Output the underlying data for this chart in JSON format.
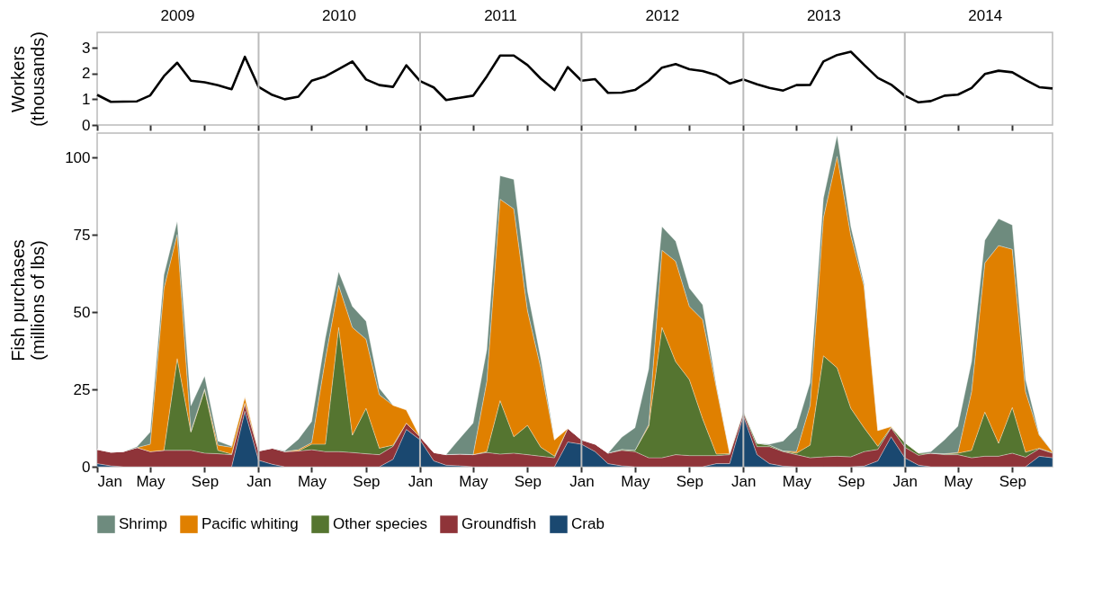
{
  "chart_data": [
    {
      "type": "line",
      "ylabel": "Workers\n(thousands)",
      "x": [
        "2009-01",
        "2009-02",
        "2009-03",
        "2009-04",
        "2009-05",
        "2009-06",
        "2009-07",
        "2009-08",
        "2009-09",
        "2009-10",
        "2009-11",
        "2009-12",
        "2010-01",
        "2010-02",
        "2010-03",
        "2010-04",
        "2010-05",
        "2010-06",
        "2010-07",
        "2010-08",
        "2010-09",
        "2010-10",
        "2010-11",
        "2010-12",
        "2011-01",
        "2011-02",
        "2011-03",
        "2011-04",
        "2011-05",
        "2011-06",
        "2011-07",
        "2011-08",
        "2011-09",
        "2011-10",
        "2011-11",
        "2011-12",
        "2012-01",
        "2012-02",
        "2012-03",
        "2012-04",
        "2012-05",
        "2012-06",
        "2012-07",
        "2012-08",
        "2012-09",
        "2012-10",
        "2012-11",
        "2012-12",
        "2013-01",
        "2013-02",
        "2013-03",
        "2013-04",
        "2013-05",
        "2013-06",
        "2013-07",
        "2013-08",
        "2013-09",
        "2013-10",
        "2013-11",
        "2013-12",
        "2014-01",
        "2014-02",
        "2014-03",
        "2014-04",
        "2014-05",
        "2014-06",
        "2014-07",
        "2014-08",
        "2014-09",
        "2014-10",
        "2014-11",
        "2014-12"
      ],
      "series": [
        {
          "color": "#000000",
          "values": [
            1.17,
            0.9,
            0.91,
            0.92,
            1.15,
            1.9,
            2.42,
            1.72,
            1.66,
            1.55,
            1.39,
            2.65,
            1.48,
            1.17,
            1.0,
            1.1,
            1.72,
            1.89,
            2.17,
            2.47,
            1.77,
            1.55,
            1.48,
            2.32,
            1.71,
            1.46,
            0.97,
            1.06,
            1.14,
            1.89,
            2.7,
            2.7,
            2.33,
            1.8,
            1.36,
            2.25,
            1.72,
            1.78,
            1.25,
            1.26,
            1.36,
            1.72,
            2.23,
            2.37,
            2.17,
            2.1,
            1.94,
            1.61,
            1.77,
            1.58,
            1.44,
            1.34,
            1.55,
            1.56,
            2.47,
            2.72,
            2.85,
            2.34,
            1.83,
            1.57,
            1.14,
            0.88,
            0.93,
            1.14,
            1.18,
            1.44,
            1.98,
            2.11,
            2.05,
            1.75,
            1.47,
            1.42
          ]
        }
      ],
      "xlim": [
        "2009-01",
        "2014-12"
      ],
      "ylim": [
        0,
        3.6
      ],
      "yticks": [
        0,
        1,
        2,
        3
      ],
      "xticks": [
        {
          "value": "2009-01",
          "label": null
        },
        {
          "value": "2009-05",
          "label": null
        },
        {
          "value": "2009-09",
          "label": null
        },
        {
          "value": "2010-01",
          "label": null
        },
        {
          "value": "2010-05",
          "label": null
        },
        {
          "value": "2010-09",
          "label": null
        },
        {
          "value": "2011-01",
          "label": null
        },
        {
          "value": "2011-05",
          "label": null
        },
        {
          "value": "2011-09",
          "label": null
        },
        {
          "value": "2012-01",
          "label": null
        },
        {
          "value": "2012-05",
          "label": null
        },
        {
          "value": "2012-09",
          "label": null
        },
        {
          "value": "2013-01",
          "label": null
        },
        {
          "value": "2013-05",
          "label": null
        },
        {
          "value": "2013-09",
          "label": null
        },
        {
          "value": "2014-01",
          "label": null
        },
        {
          "value": "2014-05",
          "label": null
        },
        {
          "value": "2014-09",
          "label": null
        }
      ],
      "x2lim": [
        "2009-01",
        "2014-12"
      ],
      "x2ticks": [
        {
          "value": "2009-07",
          "label": "2009"
        },
        {
          "value": "2010-07",
          "label": "2010"
        },
        {
          "value": "2011-07",
          "label": "2011"
        },
        {
          "value": "2012-07",
          "label": "2012"
        },
        {
          "value": "2013-07",
          "label": "2013"
        },
        {
          "value": "2014-07",
          "label": "2014"
        }
      ],
      "tick_labels": "y",
      "marker": "none",
      "line_style": "solid",
      "ref_lines": [
        {
          "axis": "x",
          "value": "2010-01",
          "label": null,
          "color": "#bbbbbb"
        },
        {
          "axis": "x",
          "value": "2011-01",
          "label": null,
          "color": "#bbbbbb"
        },
        {
          "axis": "x",
          "value": "2012-01",
          "label": null,
          "color": "#bbbbbb"
        },
        {
          "axis": "x",
          "value": "2013-01",
          "label": null,
          "color": "#bbbbbb"
        },
        {
          "axis": "x",
          "value": "2014-01",
          "label": null,
          "color": "#bbbbbb"
        }
      ]
    },
    {
      "type": "area",
      "stacked": true,
      "ylabel": "Fish purchases\n(millions of lbs)",
      "x": [
        "2009-01",
        "2009-02",
        "2009-03",
        "2009-04",
        "2009-05",
        "2009-06",
        "2009-07",
        "2009-08",
        "2009-09",
        "2009-10",
        "2009-11",
        "2009-12",
        "2010-01",
        "2010-02",
        "2010-03",
        "2010-04",
        "2010-05",
        "2010-06",
        "2010-07",
        "2010-08",
        "2010-09",
        "2010-10",
        "2010-11",
        "2010-12",
        "2011-01",
        "2011-02",
        "2011-03",
        "2011-04",
        "2011-05",
        "2011-06",
        "2011-07",
        "2011-08",
        "2011-09",
        "2011-10",
        "2011-11",
        "2011-12",
        "2012-01",
        "2012-02",
        "2012-03",
        "2012-04",
        "2012-05",
        "2012-06",
        "2012-07",
        "2012-08",
        "2012-09",
        "2012-10",
        "2012-11",
        "2012-12",
        "2013-01",
        "2013-02",
        "2013-03",
        "2013-04",
        "2013-05",
        "2013-06",
        "2013-07",
        "2013-08",
        "2013-09",
        "2013-10",
        "2013-11",
        "2013-12",
        "2014-01",
        "2014-02",
        "2014-03",
        "2014-04",
        "2014-05",
        "2014-06",
        "2014-07",
        "2014-08",
        "2014-09",
        "2014-10",
        "2014-11",
        "2014-12"
      ],
      "series": [
        {
          "name": "Crab",
          "color": "#1a4870",
          "values": [
            1.0,
            0.3,
            0,
            0,
            0,
            0,
            0,
            0,
            0,
            0,
            0,
            18.0,
            2.1,
            0.8,
            0,
            0,
            0,
            0,
            0,
            0,
            0,
            0,
            2.4,
            12.1,
            8.7,
            1.9,
            0.5,
            0.3,
            0,
            0,
            0,
            0,
            0,
            0,
            0,
            8.0,
            7.3,
            4.9,
            1.0,
            0.3,
            0,
            0,
            0,
            0,
            0,
            0,
            1.0,
            1.0,
            16.5,
            3.9,
            1.0,
            0.2,
            0,
            0,
            0,
            0,
            0,
            0.2,
            1.9,
            9.7,
            2.9,
            0.5,
            0,
            0,
            0,
            0,
            0,
            0,
            0,
            0,
            3.4,
            2.9
          ]
        },
        {
          "name": "Groundfish",
          "color": "#8f3439",
          "values": [
            4.6,
            4.4,
            4.9,
            6.2,
            4.9,
            5.3,
            5.3,
            5.3,
            4.4,
            4.2,
            3.9,
            2.4,
            3.0,
            5.2,
            4.9,
            5.1,
            5.5,
            4.9,
            4.9,
            4.6,
            4.2,
            3.9,
            4.2,
            2.0,
            1.0,
            2.7,
            3.4,
            3.8,
            3.9,
            4.6,
            4.1,
            4.4,
            3.9,
            3.4,
            2.9,
            4.4,
            1.4,
            2.4,
            3.4,
            5.0,
            4.9,
            2.9,
            2.9,
            3.9,
            3.6,
            3.6,
            2.6,
            2.9,
            1.0,
            2.6,
            5.5,
            4.7,
            3.9,
            2.9,
            3.2,
            3.4,
            3.2,
            4.7,
            3.7,
            2.9,
            3.4,
            3.2,
            4.4,
            3.9,
            3.9,
            2.9,
            3.4,
            3.4,
            4.4,
            3.1,
            2.4,
            1.5
          ]
        },
        {
          "name": "Other species",
          "color": "#557530",
          "values": [
            0,
            0,
            0,
            0,
            0,
            0,
            29.7,
            5.9,
            20.4,
            1.1,
            0.2,
            0.2,
            0,
            0,
            0,
            0,
            1.8,
            2.4,
            40.2,
            5.6,
            14.7,
            2.1,
            0.4,
            0,
            0,
            0,
            0,
            0,
            0,
            0.3,
            17.3,
            5.3,
            9.5,
            2.9,
            0.5,
            0,
            0,
            0,
            0,
            0.3,
            0.4,
            10.2,
            42.2,
            30.1,
            24.6,
            11.9,
            0.5,
            0.3,
            0.5,
            1.1,
            0.5,
            0.2,
            0.5,
            4.1,
            32.7,
            28.6,
            15.7,
            7.7,
            1.0,
            0.2,
            1.5,
            0.7,
            0,
            0.3,
            0.5,
            2.4,
            14.3,
            4.2,
            14.8,
            1.6,
            0.2,
            0.2
          ]
        },
        {
          "name": "Pacific whiting",
          "color": "#e08000",
          "values": [
            0,
            0,
            0,
            0,
            2.4,
            52.5,
            40.2,
            0.3,
            0.4,
            1.7,
            2.2,
            2.0,
            0,
            0,
            0,
            0.4,
            0.5,
            27.6,
            13.6,
            34.9,
            22.4,
            17.3,
            12.9,
            4.3,
            0,
            0,
            0,
            0,
            0,
            22.8,
            65.2,
            73.8,
            37.1,
            25.7,
            5.3,
            0,
            0,
            0,
            0,
            0,
            0,
            0.5,
            25.0,
            32.5,
            23.7,
            32.1,
            21.5,
            0.2,
            0,
            0,
            0,
            0,
            0.5,
            12.9,
            44.7,
            68.5,
            55.9,
            45.7,
            5.1,
            0.2,
            0,
            0,
            0,
            0,
            0.2,
            19.0,
            48.3,
            64.0,
            51.2,
            19.6,
            4.2,
            0.2
          ]
        },
        {
          "name": "Shrimp",
          "color": "#6e8b7e",
          "values": [
            0,
            0,
            0,
            0.3,
            3.9,
            4.3,
            4.2,
            8.2,
            4.1,
            1.3,
            0.3,
            0,
            0,
            0,
            0.2,
            3.4,
            6.8,
            6.8,
            4.4,
            6.8,
            5.8,
            2.1,
            0,
            0,
            0,
            0,
            0,
            5.1,
            10.2,
            10.2,
            7.6,
            9.5,
            6.3,
            3.0,
            0,
            0,
            0,
            0,
            0,
            3.9,
            7.3,
            18.0,
            7.6,
            6.5,
            5.9,
            4.8,
            0.6,
            0,
            0,
            0,
            0.3,
            3.2,
            7.7,
            7.3,
            6.3,
            6.8,
            2.9,
            0.9,
            0,
            0,
            0,
            0,
            0.5,
            4.5,
            8.5,
            9.7,
            7.3,
            8.7,
            7.8,
            3.9,
            0.2,
            0
          ]
        }
      ],
      "xlim": [
        "2009-01",
        "2014-12"
      ],
      "ylim": [
        0,
        108
      ],
      "yticks": [
        0,
        25,
        50,
        75,
        100
      ],
      "xticks": [
        {
          "value": "2009-01",
          "label": "Jan"
        },
        {
          "value": "2009-05",
          "label": "May"
        },
        {
          "value": "2009-09",
          "label": "Sep"
        },
        {
          "value": "2010-01",
          "label": "Jan"
        },
        {
          "value": "2010-05",
          "label": "May"
        },
        {
          "value": "2010-09",
          "label": "Sep"
        },
        {
          "value": "2011-01",
          "label": "Jan"
        },
        {
          "value": "2011-05",
          "label": "May"
        },
        {
          "value": "2011-09",
          "label": "Sep"
        },
        {
          "value": "2012-01",
          "label": "Jan"
        },
        {
          "value": "2012-05",
          "label": "May"
        },
        {
          "value": "2012-09",
          "label": "Sep"
        },
        {
          "value": "2013-01",
          "label": "Jan"
        },
        {
          "value": "2013-05",
          "label": "May"
        },
        {
          "value": "2013-09",
          "label": "Sep"
        },
        {
          "value": "2014-01",
          "label": "Jan"
        },
        {
          "value": "2014-05",
          "label": "May"
        },
        {
          "value": "2014-09",
          "label": "Sep"
        }
      ],
      "legend": "bottom",
      "ref_lines": [
        {
          "axis": "x",
          "value": "2010-01",
          "label": null,
          "color": "#bbbbbb"
        },
        {
          "axis": "x",
          "value": "2011-01",
          "label": null,
          "color": "#bbbbbb"
        },
        {
          "axis": "x",
          "value": "2012-01",
          "label": null,
          "color": "#bbbbbb"
        },
        {
          "axis": "x",
          "value": "2013-01",
          "label": null,
          "color": "#bbbbbb"
        },
        {
          "axis": "x",
          "value": "2014-01",
          "label": null,
          "color": "#bbbbbb"
        }
      ]
    }
  ]
}
